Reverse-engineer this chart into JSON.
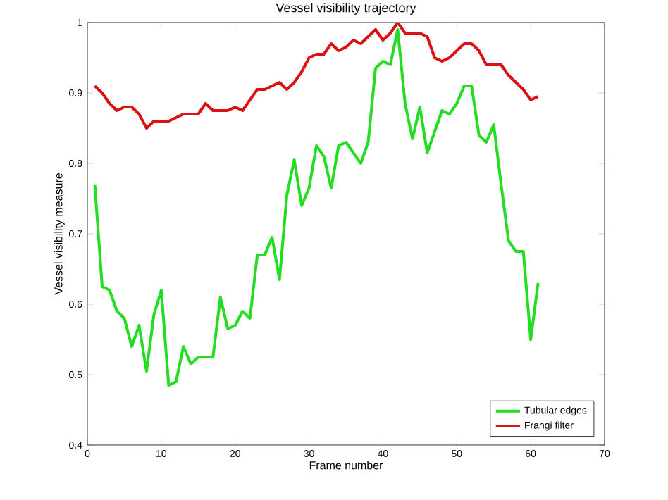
{
  "chart_data": {
    "type": "line",
    "title": "Vessel visibility trajectory",
    "xlabel": "Frame number",
    "ylabel": "Vessel visibility measure",
    "x": [
      1,
      2,
      3,
      4,
      5,
      6,
      7,
      8,
      9,
      10,
      11,
      12,
      13,
      14,
      15,
      16,
      17,
      18,
      19,
      20,
      21,
      22,
      23,
      24,
      25,
      26,
      27,
      28,
      29,
      30,
      31,
      32,
      33,
      34,
      35,
      36,
      37,
      38,
      39,
      40,
      41,
      42,
      43,
      44,
      45,
      46,
      47,
      48,
      49,
      50,
      51,
      52,
      53,
      54,
      55,
      56,
      57,
      58,
      59,
      60,
      61
    ],
    "series": [
      {
        "name": "Tubular edges",
        "color": "#22dd22",
        "values": [
          0.77,
          0.625,
          0.62,
          0.59,
          0.58,
          0.54,
          0.57,
          0.505,
          0.585,
          0.62,
          0.485,
          0.49,
          0.54,
          0.515,
          0.525,
          0.525,
          0.525,
          0.61,
          0.565,
          0.57,
          0.59,
          0.58,
          0.67,
          0.67,
          0.695,
          0.635,
          0.755,
          0.805,
          0.74,
          0.765,
          0.825,
          0.81,
          0.765,
          0.825,
          0.83,
          0.815,
          0.8,
          0.83,
          0.935,
          0.945,
          0.94,
          0.99,
          0.885,
          0.835,
          0.88,
          0.815,
          0.845,
          0.875,
          0.87,
          0.885,
          0.91,
          0.91,
          0.84,
          0.83,
          0.855,
          0.77,
          0.69,
          0.675,
          0.675,
          0.55,
          0.63
        ]
      },
      {
        "name": "Frangi filter",
        "color": "#dd1111",
        "values": [
          0.91,
          0.9,
          0.885,
          0.875,
          0.88,
          0.88,
          0.87,
          0.85,
          0.86,
          0.86,
          0.86,
          0.865,
          0.87,
          0.87,
          0.87,
          0.885,
          0.875,
          0.875,
          0.875,
          0.88,
          0.875,
          0.89,
          0.905,
          0.905,
          0.91,
          0.915,
          0.905,
          0.915,
          0.93,
          0.95,
          0.955,
          0.955,
          0.97,
          0.96,
          0.965,
          0.975,
          0.97,
          0.98,
          0.99,
          0.975,
          0.985,
          1.0,
          0.985,
          0.985,
          0.985,
          0.98,
          0.95,
          0.945,
          0.95,
          0.96,
          0.97,
          0.97,
          0.96,
          0.94,
          0.94,
          0.94,
          0.925,
          0.915,
          0.905,
          0.89,
          0.895
        ]
      }
    ],
    "xlim": [
      0,
      70
    ],
    "ylim": [
      0.4,
      1
    ],
    "xticks": [
      0,
      10,
      20,
      30,
      40,
      50,
      60,
      70
    ],
    "yticks": [
      0.4,
      0.5,
      0.6,
      0.7,
      0.8,
      0.9,
      1
    ],
    "legend": "bottom right",
    "grid": false
  }
}
